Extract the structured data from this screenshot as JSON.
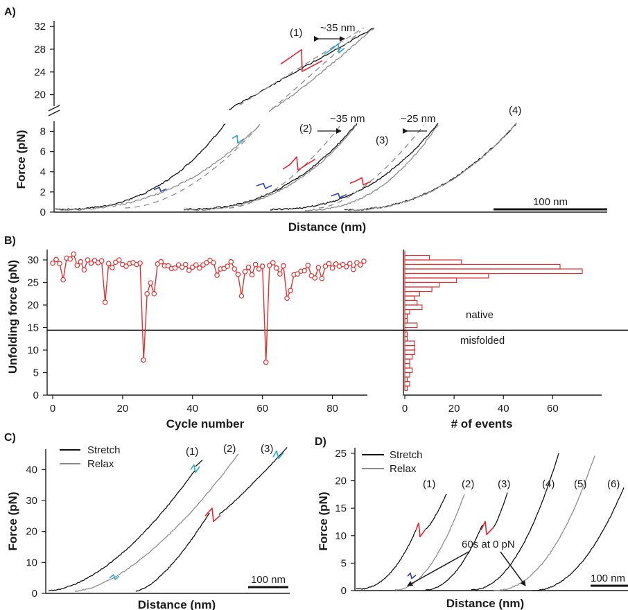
{
  "colors": {
    "stretch": "#111111",
    "relax": "#8c8c8c",
    "guide": "#8a8a8a",
    "unfold_red": "#e8212b",
    "cyan": "#2aa7c9",
    "blue": "#2b44b0",
    "series_red": "#e03030"
  },
  "chart_data": [
    {
      "panel": "A)",
      "type": "line",
      "xlabel": "Distance (nm)",
      "ylabel": "Force (pN)",
      "y_axis_broken": true,
      "ylim_lower": [
        0,
        9
      ],
      "ylim_upper": [
        18,
        33
      ],
      "yticks_lower": [
        "0",
        "2",
        "4",
        "6",
        "8"
      ],
      "yticks_upper": [
        "20",
        "24",
        "28",
        "32"
      ],
      "scale_bar": "100 nm",
      "traces": [
        {
          "label": "",
          "segment": "upper",
          "colors": [
            "stretch",
            "relax",
            "unfold_red",
            "cyan"
          ]
        },
        {
          "label": "(1)",
          "segment": "lower",
          "colors": [
            "stretch",
            "relax",
            "cyan",
            "blue"
          ]
        },
        {
          "label": "(2)",
          "segment": "lower",
          "colors": [
            "stretch",
            "relax",
            "unfold_red",
            "blue"
          ]
        },
        {
          "label": "(3)",
          "segment": "lower",
          "colors": [
            "stretch",
            "relax",
            "unfold_red",
            "blue"
          ]
        },
        {
          "label": "(4)",
          "segment": "lower",
          "colors": [
            "stretch",
            "relax"
          ]
        }
      ],
      "annotations": [
        "~35 nm",
        "~35 nm",
        "~25 nm"
      ]
    },
    {
      "panel": "B)",
      "type": "line",
      "xlabel": "Cycle number",
      "ylabel": "Unfolding force (pN)",
      "xlim": [
        0,
        90
      ],
      "ylim": [
        0,
        32
      ],
      "xticks": [
        "0",
        "20",
        "40",
        "60",
        "80"
      ],
      "yticks": [
        "0",
        "5",
        "10",
        "15",
        "20",
        "25",
        "30"
      ],
      "threshold": 14.4,
      "series": [
        {
          "x": [
            0,
            1,
            2,
            3,
            4,
            5,
            6,
            7,
            8,
            9,
            10,
            11,
            12,
            13,
            14,
            15,
            16,
            17,
            18,
            19,
            20,
            21,
            22,
            23,
            24,
            25,
            26,
            27,
            28,
            29,
            30,
            31,
            32,
            33,
            34,
            35,
            36,
            37,
            38,
            39,
            40,
            41,
            42,
            43,
            44,
            45,
            46,
            47,
            48,
            49,
            50,
            51,
            52,
            53,
            54,
            55,
            56,
            57,
            58,
            59,
            60,
            61,
            62,
            63,
            64,
            65,
            66,
            67,
            68,
            69,
            70,
            71,
            72,
            73,
            74,
            75,
            76,
            77,
            78,
            79,
            80,
            81,
            82,
            83,
            84,
            85,
            86,
            87,
            88,
            89
          ],
          "values": [
            29.3,
            30.1,
            29.2,
            25.6,
            30.4,
            30.2,
            31.3,
            28.8,
            29.6,
            27.8,
            30.0,
            29.3,
            29.9,
            29.4,
            29.8,
            20.6,
            29.2,
            28.3,
            29.5,
            30.0,
            29.0,
            28.6,
            29.2,
            29.4,
            29.0,
            29.3,
            7.8,
            22.5,
            24.9,
            22.5,
            29.1,
            29.6,
            28.7,
            28.7,
            28.1,
            28.2,
            28.9,
            28.4,
            29.0,
            27.7,
            28.4,
            28.9,
            28.2,
            28.9,
            29.4,
            29.9,
            29.4,
            26.6,
            28.0,
            28.1,
            28.6,
            29.6,
            28.0,
            26.8,
            22.0,
            27.4,
            28.4,
            26.7,
            29.0,
            28.0,
            28.6,
            7.3,
            28.8,
            29.4,
            28.2,
            26.9,
            28.7,
            21.5,
            23.2,
            26.7,
            26.9,
            27.5,
            27.6,
            28.8,
            26.5,
            26.0,
            28.3,
            25.9,
            28.6,
            29.2,
            28.2,
            29.1,
            28.6,
            29.0,
            28.5,
            29.2,
            27.9,
            29.4,
            28.9,
            29.7
          ]
        }
      ],
      "annotations": [
        "native",
        "misfolded"
      ]
    },
    {
      "panel": "B)",
      "type": "bar",
      "orientation": "horizontal",
      "xlabel": "# of events",
      "xlim": [
        0,
        72
      ],
      "xticks": [
        "0",
        "20",
        "40",
        "60"
      ],
      "bin_edges_lo": [
        1,
        2,
        3,
        4,
        5,
        6,
        7,
        8,
        9,
        10,
        11,
        12,
        13,
        14,
        15,
        16,
        17,
        18,
        19,
        20,
        21,
        22,
        23,
        24,
        25,
        26,
        27,
        28,
        29,
        30,
        31
      ],
      "counts": [
        1,
        2,
        1,
        2,
        3,
        2,
        2,
        3,
        4,
        4,
        4,
        1,
        1,
        0,
        5,
        1,
        1,
        2,
        7,
        5,
        4,
        6,
        11,
        14,
        21,
        34,
        72,
        63,
        23,
        10,
        0
      ]
    },
    {
      "panel": "C)",
      "type": "line",
      "xlabel": "Distance (nm)",
      "ylabel": "Force (pN)",
      "ylim": [
        0,
        47
      ],
      "yticks": [
        "0",
        "10",
        "20",
        "30",
        "40"
      ],
      "scale_bar": "100 nm",
      "legend": [
        "Stretch",
        "Relax"
      ],
      "legend_placement": "top-left",
      "traces": [
        {
          "label": "(1)",
          "series": "Stretch",
          "event_force": 40,
          "event_color": "cyan"
        },
        {
          "label": "(2)",
          "series": "Relax",
          "event_force": 5,
          "event_color": "cyan"
        },
        {
          "label": "(3)",
          "series": "Stretch",
          "event_force": 27,
          "event_color": "unfold_red"
        }
      ]
    },
    {
      "panel": "D)",
      "type": "line",
      "xlabel": "Distance (nm)",
      "ylabel": "Force (pN)",
      "ylim": [
        0,
        26
      ],
      "yticks": [
        "0",
        "5",
        "10",
        "15",
        "20",
        "25"
      ],
      "scale_bar": "100 nm",
      "legend": [
        "Stretch",
        "Relax"
      ],
      "legend_placement": "top-left",
      "traces": [
        {
          "label": "(1)",
          "series": "Stretch",
          "event_force": 12,
          "event_color": "unfold_red"
        },
        {
          "label": "(2)",
          "series": "Relax",
          "event_force": 3,
          "event_color": "blue"
        },
        {
          "label": "(3)",
          "series": "Stretch",
          "event_force": 12.5,
          "event_color": "unfold_red"
        },
        {
          "label": "(4)",
          "series": "Stretch"
        },
        {
          "label": "(5)",
          "series": "Relax"
        },
        {
          "label": "(6)",
          "series": "Stretch"
        }
      ],
      "annotations": [
        "60s at 0 pN"
      ]
    }
  ]
}
